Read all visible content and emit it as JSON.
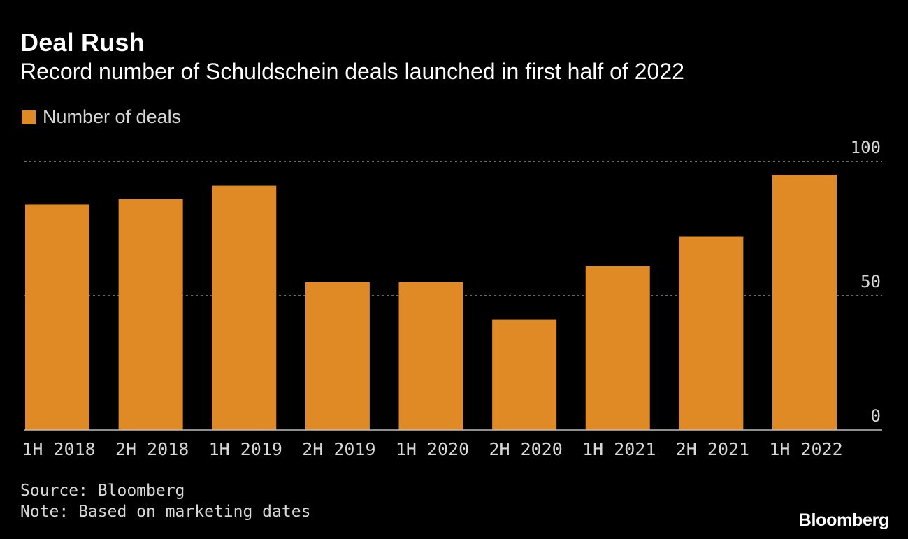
{
  "header": {
    "title": "Deal Rush",
    "subtitle": "Record number of Schuldschein deals launched in first half of 2022"
  },
  "legend": {
    "label": "Number of deals"
  },
  "footer": {
    "source": "Source: Bloomberg",
    "note": "Note: Based on marketing dates",
    "brand": "Bloomberg"
  },
  "colors": {
    "background": "#000000",
    "bar": "#df8a24",
    "gridline": "#8c8c8c",
    "axis": "#bdbdbd",
    "tick_text": "#d7d7d7"
  },
  "chart_data": {
    "type": "bar",
    "categories": [
      "1H 2018",
      "2H 2018",
      "1H 2019",
      "2H 2019",
      "1H 2020",
      "2H 2020",
      "1H 2021",
      "2H 2021",
      "1H 2022"
    ],
    "series": [
      {
        "name": "Number of deals",
        "values": [
          84,
          86,
          91,
          55,
          55,
          41,
          61,
          72,
          95
        ]
      }
    ],
    "ylim": [
      0,
      100
    ],
    "yticks": [
      "0",
      "50",
      "100"
    ],
    "y_axis_side": "right",
    "grid": "dotted horizontal",
    "legend_position": "top-left",
    "title": "Deal Rush",
    "subtitle": "Record number of Schuldschein deals launched in first half of 2022"
  }
}
